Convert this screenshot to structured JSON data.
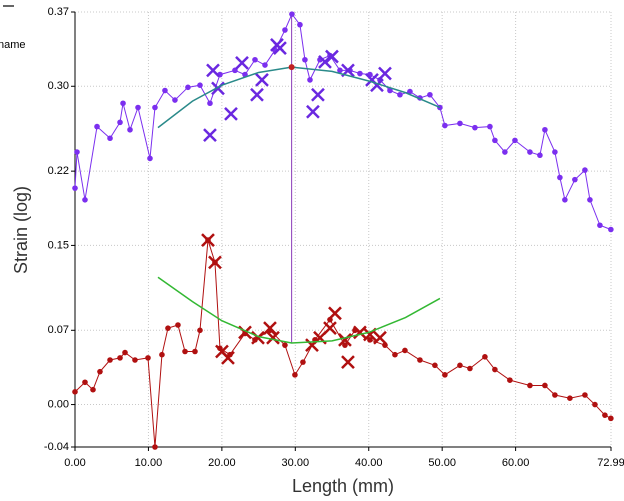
{
  "chart_data": {
    "type": "line",
    "x_label": "Length  (mm)",
    "y_label": "Strain (log)",
    "legend_text": "name",
    "grid": true,
    "xlim": [
      0,
      72.99
    ],
    "ylim": [
      -0.04,
      0.37
    ],
    "xticks": [
      {
        "value": 0,
        "label": "0.00"
      },
      {
        "value": 10,
        "label": "10.00"
      },
      {
        "value": 20,
        "label": "20.00"
      },
      {
        "value": 30,
        "label": "30.00"
      },
      {
        "value": 40,
        "label": "40.00"
      },
      {
        "value": 50,
        "label": "50.00"
      },
      {
        "value": 60,
        "label": "60.00"
      },
      {
        "value": 72.99,
        "label": "72.99"
      }
    ],
    "yticks": [
      {
        "value": -0.04,
        "label": "-0.04"
      },
      {
        "value": 0,
        "label": "0.00"
      },
      0.07,
      0.15,
      0.22,
      {
        "value": 0.3,
        "label": "0.30"
      },
      0.37
    ],
    "series": [
      {
        "color": "#7b2fef",
        "marker": "dot",
        "x": [
          0,
          0.27,
          1.36,
          3.0,
          4.77,
          6.13,
          6.54,
          7.49,
          8.58,
          10.21,
          10.89,
          12.25,
          13.61,
          15.38,
          17.02,
          18.38,
          19.74,
          21.78,
          23.15,
          24.51,
          25.87,
          27.23,
          28.59,
          29.54,
          30.63,
          31.31,
          32.0,
          33.36,
          34.72,
          36.08,
          37.44,
          38.8,
          40.16,
          41.53,
          42.89,
          44.25,
          45.61,
          46.97,
          48.33,
          49.69,
          50.37,
          52.42,
          54.46,
          56.5,
          57.18,
          58.54,
          59.91,
          61.95,
          63.31,
          63.99,
          65.35,
          66.03,
          66.71,
          68.07,
          69.44,
          70.12,
          71.48,
          72.97
        ],
        "values": [
          0.204,
          0.238,
          0.193,
          0.262,
          0.251,
          0.266,
          0.284,
          0.259,
          0.28,
          0.232,
          0.28,
          0.296,
          0.287,
          0.299,
          0.301,
          0.284,
          0.311,
          0.315,
          0.311,
          0.325,
          0.32,
          0.334,
          0.353,
          0.368,
          0.358,
          0.325,
          0.306,
          0.325,
          0.329,
          0.315,
          0.315,
          0.312,
          0.311,
          0.306,
          0.296,
          0.292,
          0.295,
          0.289,
          0.292,
          0.28,
          0.263,
          0.265,
          0.261,
          0.262,
          0.249,
          0.238,
          0.249,
          0.238,
          0.235,
          0.259,
          0.238,
          0.214,
          0.193,
          0.212,
          0.221,
          0.193,
          0.169,
          0.165
        ]
      },
      {
        "color": "#b01010",
        "marker": "dot",
        "x": [
          0,
          1.36,
          2.45,
          3.4,
          4.77,
          6.13,
          6.81,
          8.17,
          9.94,
          10.89,
          11.84,
          12.66,
          14.02,
          14.98,
          16.34,
          17.02,
          18.11,
          19.06,
          19.74,
          21.1,
          23.15,
          24.51,
          26.55,
          28.59,
          29.95,
          31.04,
          32.68,
          34.72,
          36.76,
          38.12,
          40.16,
          42.21,
          43.57,
          44.93,
          46.97,
          49.01,
          50.37,
          52.42,
          53.78,
          55.82,
          57.18,
          59.22,
          61.95,
          63.99,
          65.35,
          67.39,
          69.44,
          70.8,
          72.16,
          72.97
        ],
        "values": [
          0.012,
          0.021,
          0.014,
          0.031,
          0.042,
          0.044,
          0.049,
          0.042,
          0.044,
          -0.04,
          0.047,
          0.072,
          0.075,
          0.05,
          0.05,
          0.07,
          0.155,
          0.134,
          0.053,
          0.047,
          0.067,
          0.061,
          0.07,
          0.056,
          0.028,
          0.04,
          0.061,
          0.08,
          0.056,
          0.07,
          0.061,
          0.056,
          0.047,
          0.051,
          0.042,
          0.037,
          0.028,
          0.037,
          0.034,
          0.045,
          0.033,
          0.023,
          0.018,
          0.018,
          0.009,
          0.006,
          0.009,
          0.0,
          -0.01,
          -0.013
        ]
      },
      {
        "color": "#6a28e0",
        "marker": "cross",
        "x": [
          18.38,
          18.79,
          19.47,
          21.24,
          22.74,
          24.78,
          25.46,
          27.5,
          27.91,
          32.4,
          33.08,
          34.04,
          34.99,
          37.17,
          40.44,
          41.12,
          42.21
        ],
        "values": [
          0.254,
          0.315,
          0.298,
          0.274,
          0.322,
          0.292,
          0.306,
          0.339,
          0.336,
          0.276,
          0.292,
          0.323,
          0.328,
          0.315,
          0.306,
          0.301,
          0.312
        ]
      },
      {
        "color": "#b01010",
        "marker": "cross",
        "x": [
          18.11,
          19.06,
          20.01,
          20.83,
          23.15,
          24.92,
          26.55,
          26.96,
          32.27,
          33.36,
          34.72,
          35.4,
          36.76,
          37.17,
          38.8,
          40.16,
          41.53
        ],
        "values": [
          0.155,
          0.134,
          0.05,
          0.044,
          0.068,
          0.063,
          0.072,
          0.063,
          0.056,
          0.063,
          0.072,
          0.086,
          0.061,
          0.04,
          0.068,
          0.066,
          0.063
        ]
      },
      {
        "color": "#2a8a8a",
        "marker": "none",
        "x": [
          11.3,
          16,
          20,
          25,
          29.5,
          35,
          40,
          45,
          49.7
        ],
        "values": [
          0.261,
          0.286,
          0.301,
          0.313,
          0.318,
          0.314,
          0.305,
          0.294,
          0.28
        ]
      },
      {
        "color": "#33b833",
        "marker": "none",
        "x": [
          11.3,
          16,
          20,
          25,
          29.5,
          35,
          40,
          45,
          49.7
        ],
        "values": [
          0.12,
          0.097,
          0.079,
          0.064,
          0.058,
          0.06,
          0.068,
          0.082,
          0.1
        ]
      }
    ],
    "vline": {
      "color": "#8a3ab8",
      "x": 29.5,
      "y": [
        0.058,
        0.37
      ]
    },
    "peak_point": {
      "color": "#c02020",
      "x": 29.5,
      "y": 0.318
    }
  }
}
